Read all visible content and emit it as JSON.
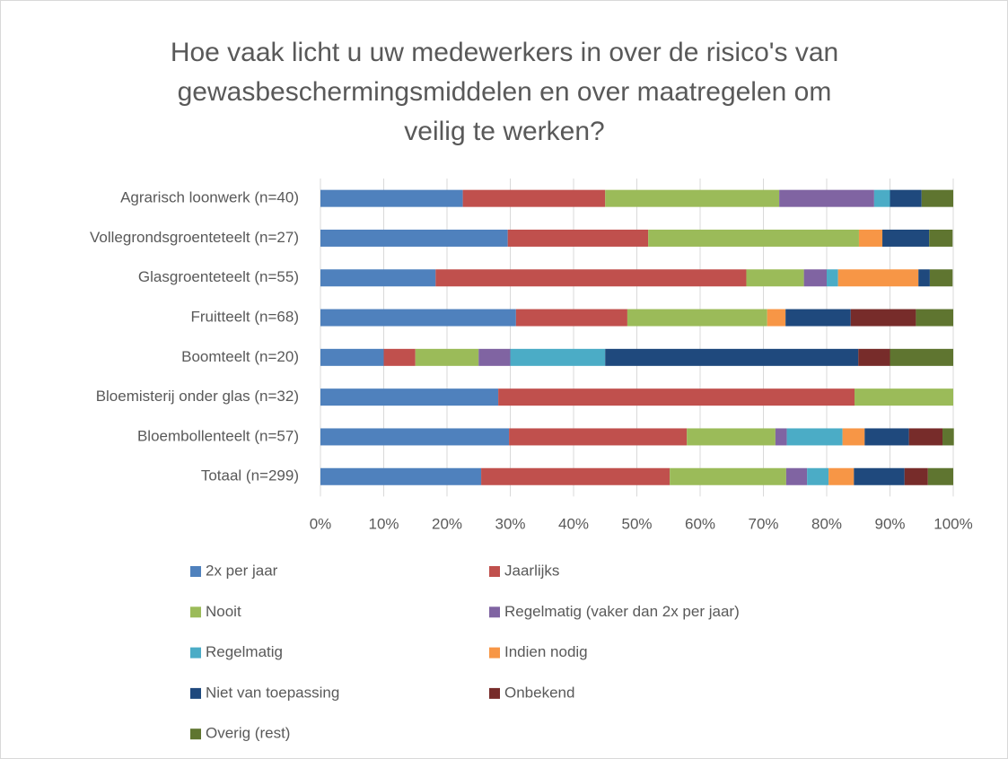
{
  "chart_data": {
    "type": "stacked-bar-horizontal",
    "title": [
      "Hoe vaak licht u uw medewerkers in over de risico's van",
      "gewasbeschermingsmiddelen en over maatregelen om",
      "veilig te werken?"
    ],
    "categories": [
      "Agrarisch loonwerk (n=40)",
      "Vollegrondsgroenteteelt (n=27)",
      "Glasgroenteteelt (n=55)",
      "Fruitteelt (n=68)",
      "Boomteelt (n=20)",
      "Bloemisterij onder glas (n=32)",
      "Bloembollenteelt (n=57)",
      "Totaal (n=299)"
    ],
    "series": [
      {
        "name": "2x per jaar",
        "color": "#4f81bd",
        "values": [
          22.5,
          29.6,
          18.2,
          30.9,
          10,
          28.1,
          29.8,
          25.4
        ]
      },
      {
        "name": "Jaarlijks",
        "color": "#c0504d",
        "values": [
          22.5,
          22.2,
          49.1,
          17.6,
          5,
          56.3,
          28.1,
          29.8
        ]
      },
      {
        "name": "Nooit",
        "color": "#9bbb59",
        "values": [
          27.5,
          33.3,
          9.1,
          22.1,
          10,
          15.6,
          14.0,
          18.4
        ]
      },
      {
        "name": "Regelmatig (vaker dan 2x per jaar)",
        "color": "#8064a2",
        "values": [
          15,
          0,
          3.6,
          0,
          5,
          0,
          1.8,
          3.3
        ]
      },
      {
        "name": "Regelmatig",
        "color": "#4bacc6",
        "values": [
          2.5,
          0,
          1.8,
          0,
          15,
          0,
          8.8,
          3.4
        ]
      },
      {
        "name": "Indien nodig",
        "color": "#f79646",
        "values": [
          0,
          3.7,
          12.7,
          2.9,
          0,
          0,
          3.5,
          4.0
        ]
      },
      {
        "name": "Niet van toepassing",
        "color": "#1f497d",
        "values": [
          5,
          7.4,
          1.8,
          10.3,
          40,
          0,
          7.0,
          8.0
        ]
      },
      {
        "name": "Onbekend",
        "color": "#772c2a",
        "values": [
          0,
          0,
          0,
          10.3,
          5,
          0,
          5.3,
          3.7
        ]
      },
      {
        "name": "Overig (rest)",
        "color": "#5f7530",
        "values": [
          5,
          3.7,
          3.6,
          5.9,
          10,
          0,
          1.8,
          4.0
        ]
      }
    ],
    "xlim": [
      0,
      100
    ],
    "xticks": [
      {
        "value": 0,
        "label": "0%"
      },
      {
        "value": 10,
        "label": "10%"
      },
      {
        "value": 20,
        "label": "20%"
      },
      {
        "value": 30,
        "label": "30%"
      },
      {
        "value": 40,
        "label": "40%"
      },
      {
        "value": 50,
        "label": "50%"
      },
      {
        "value": 60,
        "label": "60%"
      },
      {
        "value": 70,
        "label": "70%"
      },
      {
        "value": 80,
        "label": "80%"
      },
      {
        "value": 90,
        "label": "90%"
      },
      {
        "value": 100,
        "label": "100%"
      }
    ],
    "grid": true,
    "legend": "bottom"
  }
}
